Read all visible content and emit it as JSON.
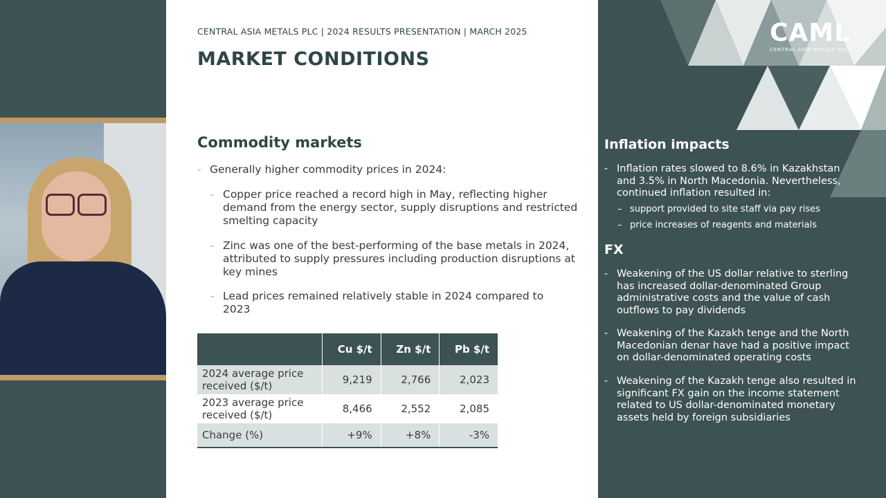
{
  "slide": {
    "header": "CENTRAL ASIA METALS PLC | 2024 RESULTS PRESENTATION | MARCH 2025",
    "title": "MARKET CONDITIONS",
    "commodity_heading": "Commodity markets",
    "bullets": [
      "Generally higher commodity prices in 2024:",
      "Copper price reached a record high in May, reflecting higher demand from the energy sector, supply disruptions and restricted smelting capacity",
      "Zinc was one of the best-performing of the base metals in 2024, attributed to supply pressures including production disruptions at key mines",
      "Lead prices remained relatively stable in 2024 compared to 2023"
    ],
    "table": {
      "headers": [
        "",
        "Cu $/t",
        "Zn $/t",
        "Pb $/t"
      ],
      "rows": [
        {
          "label": "2024 average price received ($/t)",
          "cu": "9,219",
          "zn": "2,766",
          "pb": "2,023"
        },
        {
          "label": "2023 average price received ($/t)",
          "cu": "8,466",
          "zn": "2,552",
          "pb": "2,085"
        },
        {
          "label": "Change (%)",
          "cu": "+9%",
          "zn": "+8%",
          "pb": "-3%"
        }
      ]
    }
  },
  "right_panel": {
    "logo": "CAML",
    "logo_sub": "CENTRAL ASIA METALS PLC",
    "inflation_heading": "Inflation impacts",
    "inflation_text": "Inflation rates slowed to 8.6% in Kazakhstan and 3.5% in North Macedonia. Nevertheless, continued inflation resulted in:",
    "inflation_subs": [
      "support provided to site staff via pay rises",
      "price increases of reagents and materials"
    ],
    "fx_heading": "FX",
    "fx_items": [
      "Weakening of the US dollar relative to sterling has increased dollar-denominated Group administrative costs and the value of cash outflows to pay dividends",
      "Weakening of the Kazakh tenge and the North Macedonian denar have had a positive impact on dollar-denominated operating costs",
      "Weakening of the Kazakh tenge also resulted in significant FX gain on the income statement related to US dollar-denominated monetary assets held by foreign subsidiaries"
    ]
  },
  "colors": {
    "panel": "#3d5252",
    "table_header": "#3d5252",
    "table_row": "#d9e1e0",
    "video_frame": "#c09a6a"
  }
}
